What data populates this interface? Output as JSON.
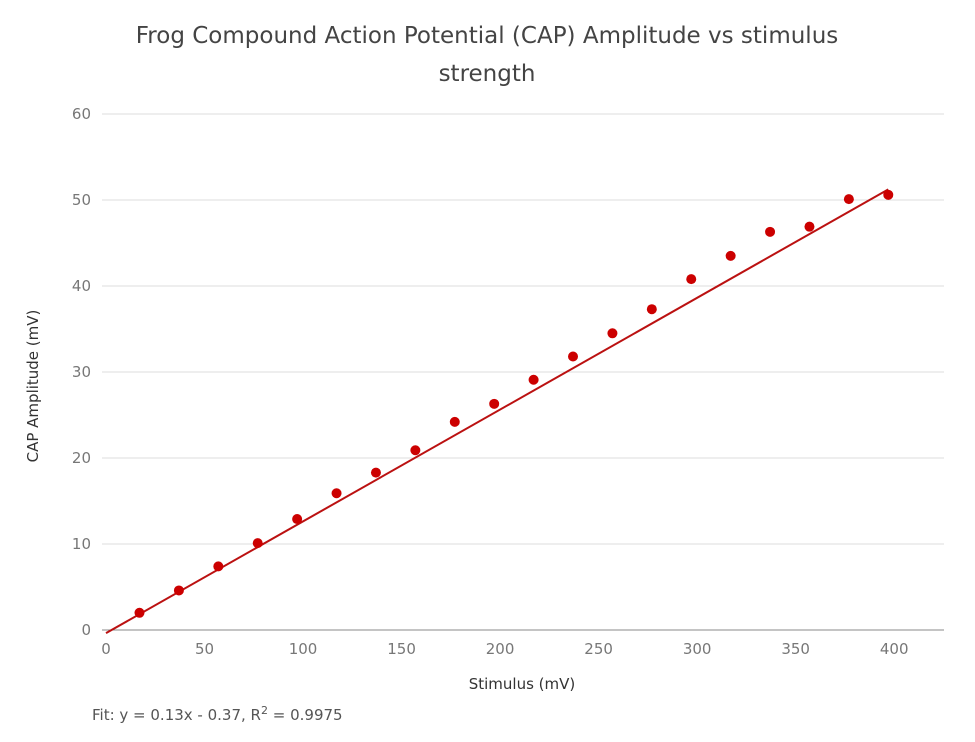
{
  "chart_data": {
    "type": "scatter",
    "title_lines": [
      "Frog Compound Action Potential (CAP) Amplitude vs stimulus",
      "strength"
    ],
    "xlabel": "Stimulus (mV)",
    "ylabel": "CAP Amplitude (mV)",
    "xlim": [
      0,
      420
    ],
    "ylim": [
      0,
      60
    ],
    "x_ticks": [
      0,
      50,
      100,
      150,
      200,
      250,
      300,
      350,
      400
    ],
    "y_ticks": [
      0,
      10,
      20,
      30,
      40,
      50,
      60
    ],
    "grid": true,
    "series": [
      {
        "name": "CAP Amplitude",
        "color": "#cc0000",
        "points": [
          [
            17,
            2.0
          ],
          [
            37,
            4.6
          ],
          [
            57,
            7.4
          ],
          [
            77,
            10.1
          ],
          [
            97,
            12.9
          ],
          [
            117,
            15.9
          ],
          [
            137,
            18.3
          ],
          [
            157,
            20.9
          ],
          [
            177,
            24.2
          ],
          [
            197,
            26.3
          ],
          [
            217,
            29.1
          ],
          [
            237,
            31.8
          ],
          [
            257,
            34.5
          ],
          [
            277,
            37.3
          ],
          [
            297,
            40.8
          ],
          [
            317,
            43.5
          ],
          [
            337,
            46.3
          ],
          [
            357,
            46.9
          ],
          [
            377,
            50.1
          ],
          [
            397,
            50.6
          ]
        ]
      }
    ],
    "fit": {
      "slope": 0.13,
      "intercept": -0.37,
      "x_range": [
        0,
        397
      ],
      "color": "#bb1111"
    }
  },
  "fit_note": {
    "prefix": "Fit: y = 0.13x - 0.37, R",
    "sup": "2",
    "suffix": " = 0.9975"
  }
}
